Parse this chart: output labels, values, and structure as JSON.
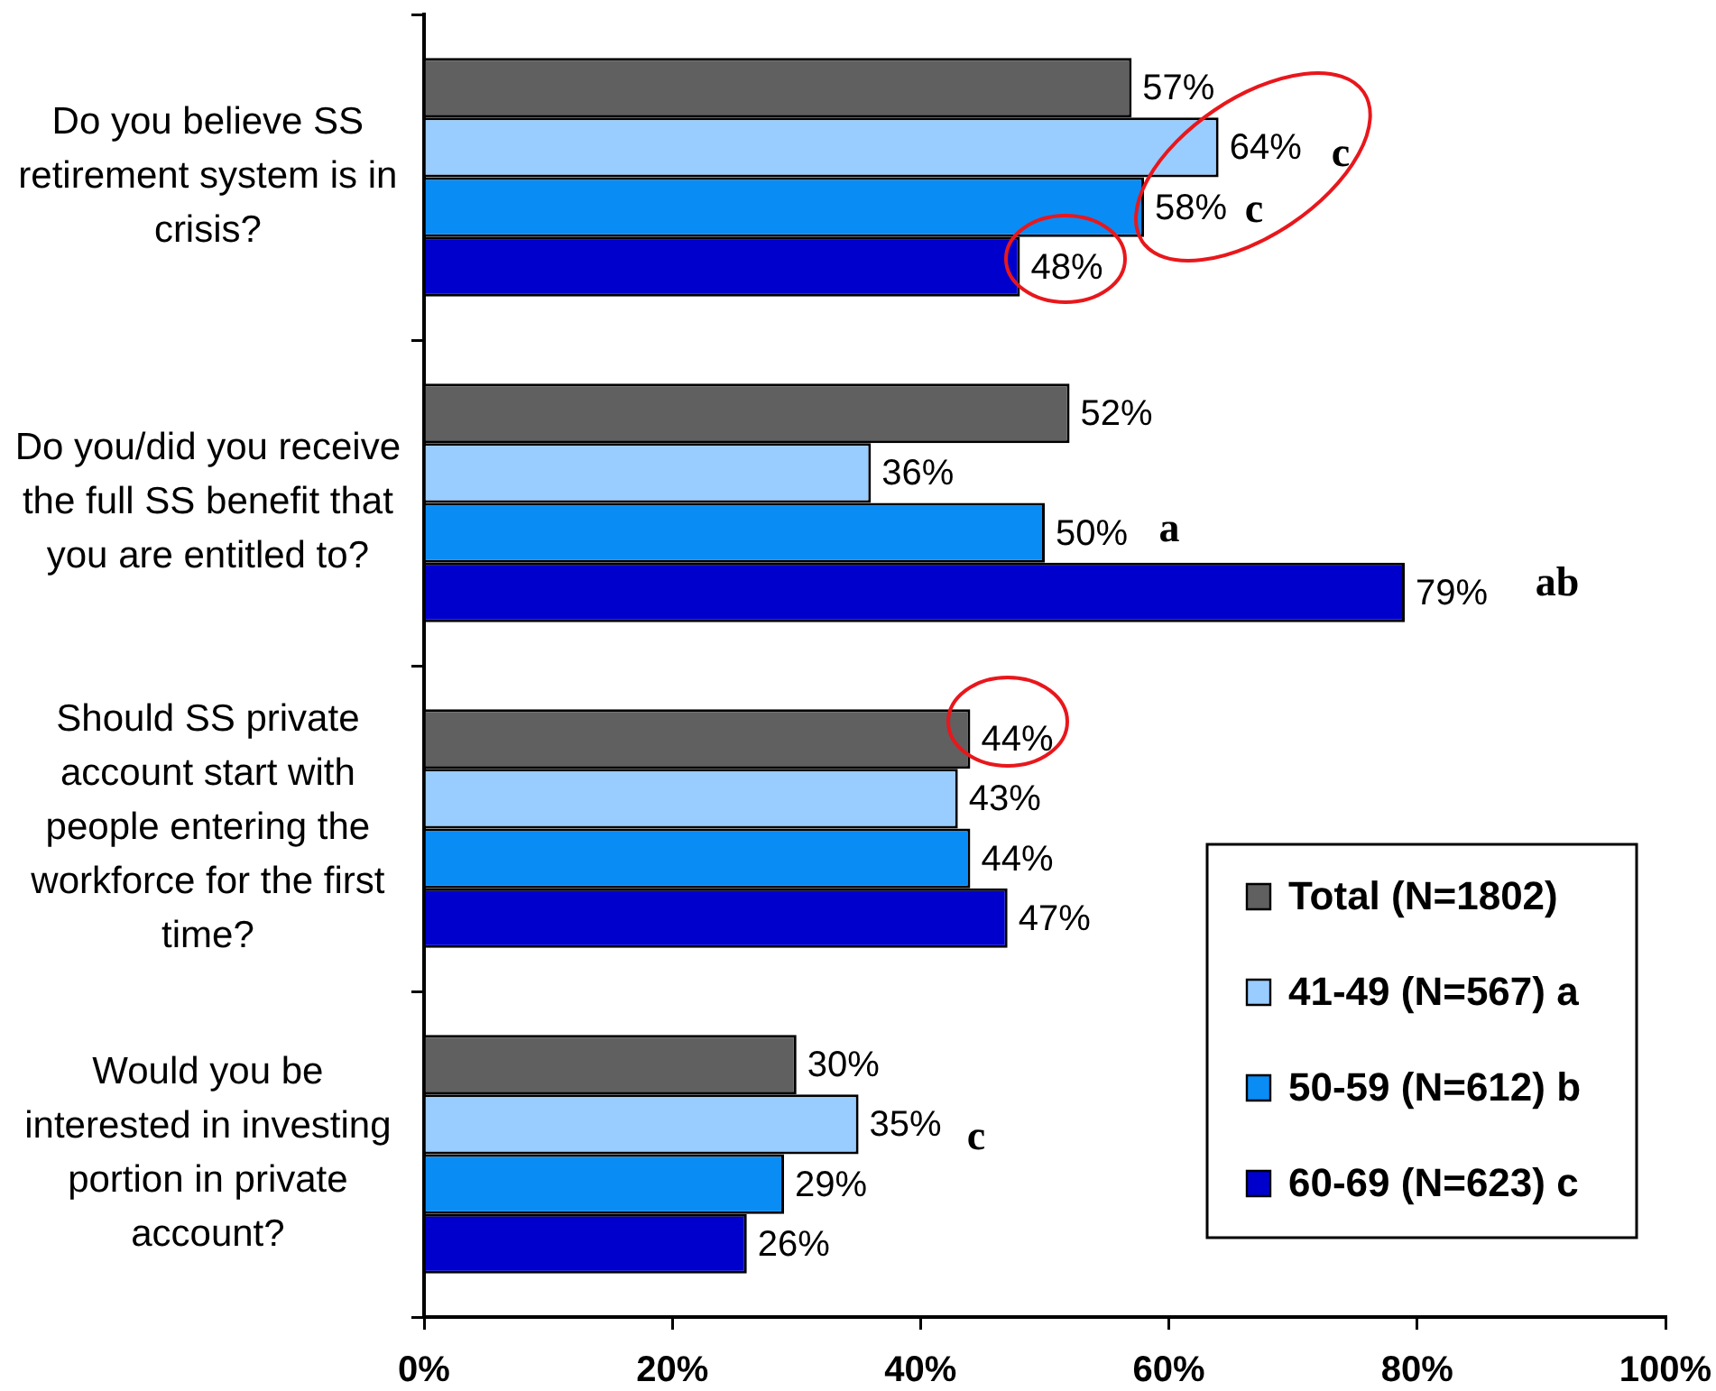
{
  "chart_data": {
    "type": "bar",
    "orientation": "horizontal",
    "categories": [
      "Do you believe SS retirement system is in crisis?",
      "Do you/did you receive the full SS benefit that you are entitled to?",
      "Should SS private account start with people entering the workforce for the first time?",
      "Would you be interested in investing portion in private account?"
    ],
    "series": [
      {
        "name": "Total (N=1802)",
        "color": "#606060",
        "values": [
          57,
          52,
          44,
          30
        ],
        "value_labels": [
          "57%",
          "52%",
          "44%",
          "30%"
        ]
      },
      {
        "name": "41-49 (N=567) a",
        "color": "#99ccff",
        "values": [
          64,
          36,
          43,
          35
        ],
        "value_labels": [
          "64%",
          "36%",
          "43%",
          "35%"
        ]
      },
      {
        "name": "50-59 (N=612) b",
        "color": "#0a8cf5",
        "values": [
          58,
          50,
          44,
          29
        ],
        "value_labels": [
          "58%",
          "50%",
          "44%",
          "29%"
        ]
      },
      {
        "name": "60-69 (N=623) c",
        "color": "#0000cc",
        "values": [
          48,
          79,
          47,
          26
        ],
        "value_labels": [
          "48%",
          "79%",
          "47%",
          "26%"
        ]
      }
    ],
    "xlim": [
      0,
      100
    ],
    "xticks": [
      {
        "value": 0,
        "label": "0%"
      },
      {
        "value": 20,
        "label": "20%"
      },
      {
        "value": 40,
        "label": "40%"
      },
      {
        "value": 60,
        "label": "60%"
      },
      {
        "value": 80,
        "label": "80%"
      },
      {
        "value": 100,
        "label": "100%"
      }
    ],
    "grid": false,
    "legend": "bottom right",
    "annotations": [
      "c",
      "c",
      "a",
      "ab",
      "c"
    ]
  }
}
